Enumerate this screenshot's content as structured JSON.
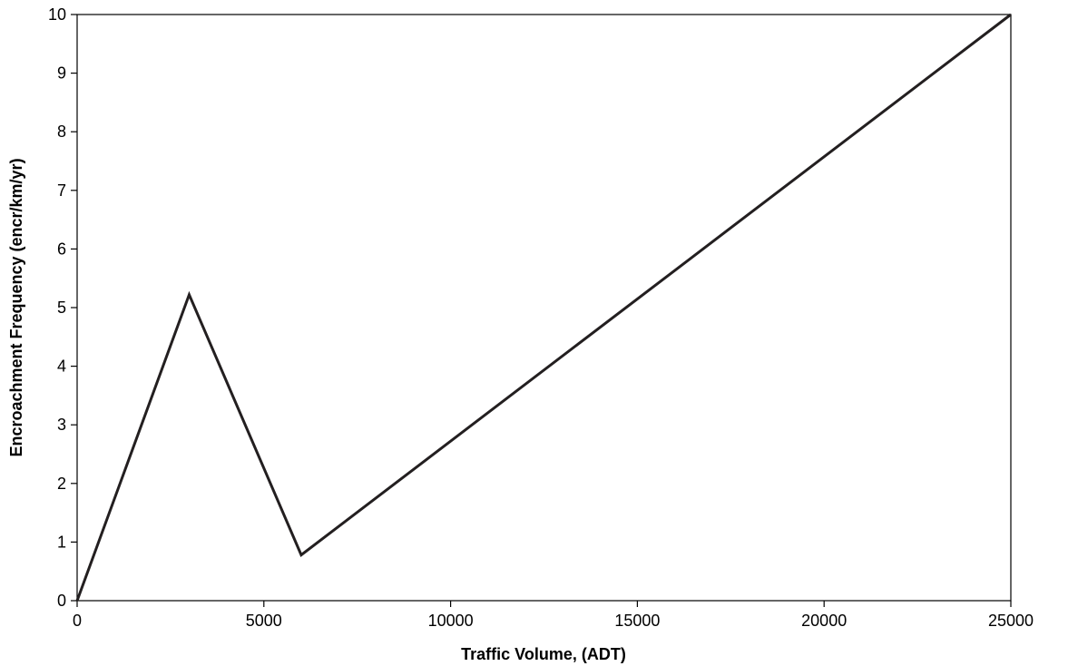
{
  "chart_data": {
    "type": "line",
    "title": "",
    "xlabel": "Traffic Volume, (ADT)",
    "ylabel": "Encroachment Frequency (encr/km/yr)",
    "xlim": [
      0,
      25000
    ],
    "ylim": [
      0,
      10
    ],
    "x_ticks": [
      "0",
      "5000",
      "10000",
      "15000",
      "20000",
      "25000"
    ],
    "y_ticks": [
      "0",
      "1",
      "2",
      "3",
      "4",
      "5",
      "6",
      "7",
      "8",
      "9",
      "10"
    ],
    "grid": false,
    "legend": "none",
    "series": [
      {
        "x": [
          0,
          3000,
          6000,
          25000
        ],
        "y": [
          0,
          5.22,
          0.78,
          10
        ],
        "color": "#231f20"
      }
    ]
  }
}
